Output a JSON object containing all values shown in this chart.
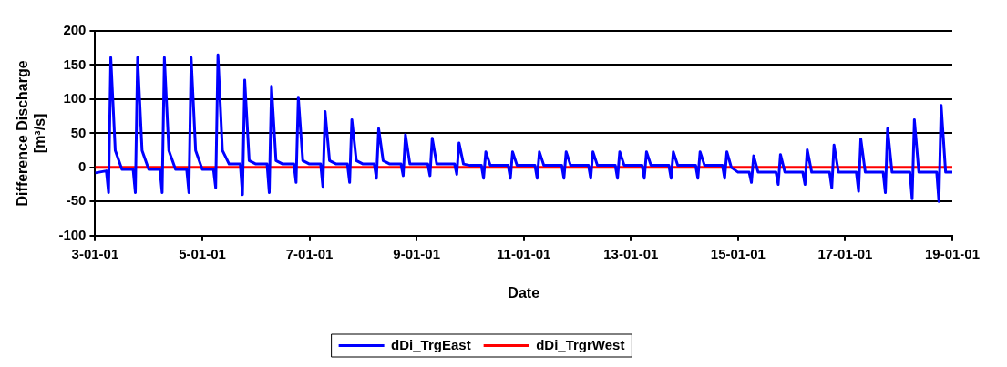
{
  "chart_data": {
    "type": "line",
    "xlabel": "Date",
    "ylabel": "Difference Discharge\n[m³/s]",
    "xlim": [
      "--01-03",
      "--01-19"
    ],
    "xticks": [
      {
        "value": "--01-03",
        "label": "3-01-01"
      },
      {
        "value": "--01-05",
        "label": "5-01-01"
      },
      {
        "value": "--01-07",
        "label": "7-01-01"
      },
      {
        "value": "--01-09",
        "label": "9-01-01"
      },
      {
        "value": "--01-11",
        "label": "11-01-01"
      },
      {
        "value": "--01-13",
        "label": "13-01-01"
      },
      {
        "value": "--01-15",
        "label": "15-01-01"
      },
      {
        "value": "--01-17",
        "label": "17-01-01"
      },
      {
        "value": "--01-19",
        "label": "19-01-01"
      }
    ],
    "ylim": [
      -100,
      200
    ],
    "yticks": [
      -100,
      -50,
      0,
      50,
      100,
      150,
      200
    ],
    "grid": "y",
    "legend": "bottom",
    "marker": "none",
    "line_style": "solid",
    "series": [
      {
        "name": "dDi_TrgEast",
        "color": "#0000ff",
        "x": [
          "--01-03T00:00",
          "--01-03T05:00",
          "--01-03T06:00",
          "--01-03T07:00",
          "--01-03T09:00",
          "--01-03T12:00",
          "--01-03T17:00",
          "--01-03T18:00",
          "--01-03T19:00",
          "--01-03T21:00",
          "--01-04T00:00",
          "--01-04T05:00",
          "--01-04T06:00",
          "--01-04T07:00",
          "--01-04T09:00",
          "--01-04T12:00",
          "--01-04T17:00",
          "--01-04T18:00",
          "--01-04T19:00",
          "--01-04T21:00",
          "--01-05T00:00",
          "--01-05T05:00",
          "--01-05T06:00",
          "--01-05T07:00",
          "--01-05T09:00",
          "--01-05T12:00",
          "--01-05T17:00",
          "--01-05T18:00",
          "--01-05T19:00",
          "--01-05T21:00",
          "--01-06T00:00",
          "--01-06T05:00",
          "--01-06T06:00",
          "--01-06T07:00",
          "--01-06T09:00",
          "--01-06T12:00",
          "--01-06T17:00",
          "--01-06T18:00",
          "--01-06T19:00",
          "--01-06T21:00",
          "--01-07T00:00",
          "--01-07T05:00",
          "--01-07T06:00",
          "--01-07T07:00",
          "--01-07T09:00",
          "--01-07T12:00",
          "--01-07T17:00",
          "--01-07T18:00",
          "--01-07T19:00",
          "--01-07T21:00",
          "--01-08T00:00",
          "--01-08T05:00",
          "--01-08T06:00",
          "--01-08T07:00",
          "--01-08T09:00",
          "--01-08T12:00",
          "--01-08T17:00",
          "--01-08T18:00",
          "--01-08T19:00",
          "--01-08T21:00",
          "--01-09T00:00",
          "--01-09T05:00",
          "--01-09T06:00",
          "--01-09T07:00",
          "--01-09T09:00",
          "--01-09T12:00",
          "--01-09T17:00",
          "--01-09T18:00",
          "--01-09T19:00",
          "--01-09T21:00",
          "--01-10T00:00",
          "--01-10T05:00",
          "--01-10T06:00",
          "--01-10T07:00",
          "--01-10T09:00",
          "--01-10T12:00",
          "--01-10T17:00",
          "--01-10T18:00",
          "--01-10T19:00",
          "--01-10T21:00",
          "--01-11T00:00",
          "--01-11T05:00",
          "--01-11T06:00",
          "--01-11T07:00",
          "--01-11T09:00",
          "--01-11T12:00",
          "--01-11T17:00",
          "--01-11T18:00",
          "--01-11T19:00",
          "--01-11T21:00",
          "--01-12T00:00",
          "--01-12T05:00",
          "--01-12T06:00",
          "--01-12T07:00",
          "--01-12T09:00",
          "--01-12T12:00",
          "--01-12T17:00",
          "--01-12T18:00",
          "--01-12T19:00",
          "--01-12T21:00",
          "--01-13T00:00",
          "--01-13T05:00",
          "--01-13T06:00",
          "--01-13T07:00",
          "--01-13T09:00",
          "--01-13T12:00",
          "--01-13T17:00",
          "--01-13T18:00",
          "--01-13T19:00",
          "--01-13T21:00",
          "--01-14T00:00",
          "--01-14T05:00",
          "--01-14T06:00",
          "--01-14T07:00",
          "--01-14T09:00",
          "--01-14T12:00",
          "--01-14T17:00",
          "--01-14T18:00",
          "--01-14T19:00",
          "--01-14T21:00",
          "--01-15T00:00",
          "--01-15T05:00",
          "--01-15T06:00",
          "--01-15T07:00",
          "--01-15T09:00",
          "--01-15T12:00",
          "--01-15T17:00",
          "--01-15T18:00",
          "--01-15T19:00",
          "--01-15T21:00",
          "--01-16T00:00",
          "--01-16T05:00",
          "--01-16T06:00",
          "--01-16T07:00",
          "--01-16T09:00",
          "--01-16T12:00",
          "--01-16T17:00",
          "--01-16T18:00",
          "--01-16T19:00",
          "--01-16T21:00",
          "--01-17T00:00",
          "--01-17T05:00",
          "--01-17T06:00",
          "--01-17T07:00",
          "--01-17T09:00",
          "--01-17T12:00",
          "--01-17T17:00",
          "--01-17T18:00",
          "--01-17T19:00",
          "--01-17T21:00",
          "--01-18T00:00",
          "--01-18T05:00",
          "--01-18T06:00",
          "--01-18T07:00",
          "--01-18T09:00",
          "--01-18T12:00",
          "--01-18T17:00",
          "--01-18T18:00",
          "--01-18T19:00",
          "--01-18T21:00",
          "--01-19T00:00"
        ],
        "values": [
          -8,
          -5,
          -37,
          161,
          25,
          -3,
          -3,
          -37,
          161,
          25,
          -3,
          -3,
          -37,
          161,
          25,
          -3,
          -3,
          -37,
          161,
          25,
          -3,
          -3,
          -30,
          165,
          25,
          5,
          5,
          -40,
          128,
          10,
          5,
          5,
          -37,
          119,
          10,
          5,
          5,
          -22,
          103,
          10,
          5,
          5,
          -28,
          82,
          10,
          5,
          5,
          -22,
          70,
          10,
          5,
          5,
          -16,
          57,
          10,
          5,
          5,
          -12,
          48,
          5,
          5,
          5,
          -12,
          43,
          5,
          5,
          5,
          -10,
          36,
          5,
          3,
          3,
          -16,
          23,
          3,
          3,
          3,
          -16,
          23,
          3,
          3,
          3,
          -16,
          23,
          3,
          3,
          3,
          -16,
          23,
          3,
          3,
          3,
          -16,
          23,
          3,
          3,
          3,
          -16,
          23,
          3,
          3,
          3,
          -16,
          23,
          3,
          3,
          3,
          -16,
          23,
          3,
          3,
          3,
          -16,
          23,
          3,
          3,
          3,
          -16,
          23,
          0,
          -7,
          -7,
          -22,
          17,
          -7,
          -7,
          -7,
          -25,
          19,
          -7,
          -7,
          -7,
          -25,
          26,
          -7,
          -7,
          -7,
          -30,
          33,
          -7,
          -7,
          -7,
          -35,
          42,
          -7,
          -7,
          -7,
          -37,
          57,
          -7,
          -7,
          -7,
          -46,
          70,
          -7,
          -7,
          -7,
          -50,
          91,
          -7,
          -7
        ]
      },
      {
        "name": "dDi_TrgrWest",
        "color": "#ff0000",
        "x": [
          "--01-03T00:00",
          "--01-19T00:00"
        ],
        "values": [
          0,
          0
        ]
      }
    ]
  }
}
